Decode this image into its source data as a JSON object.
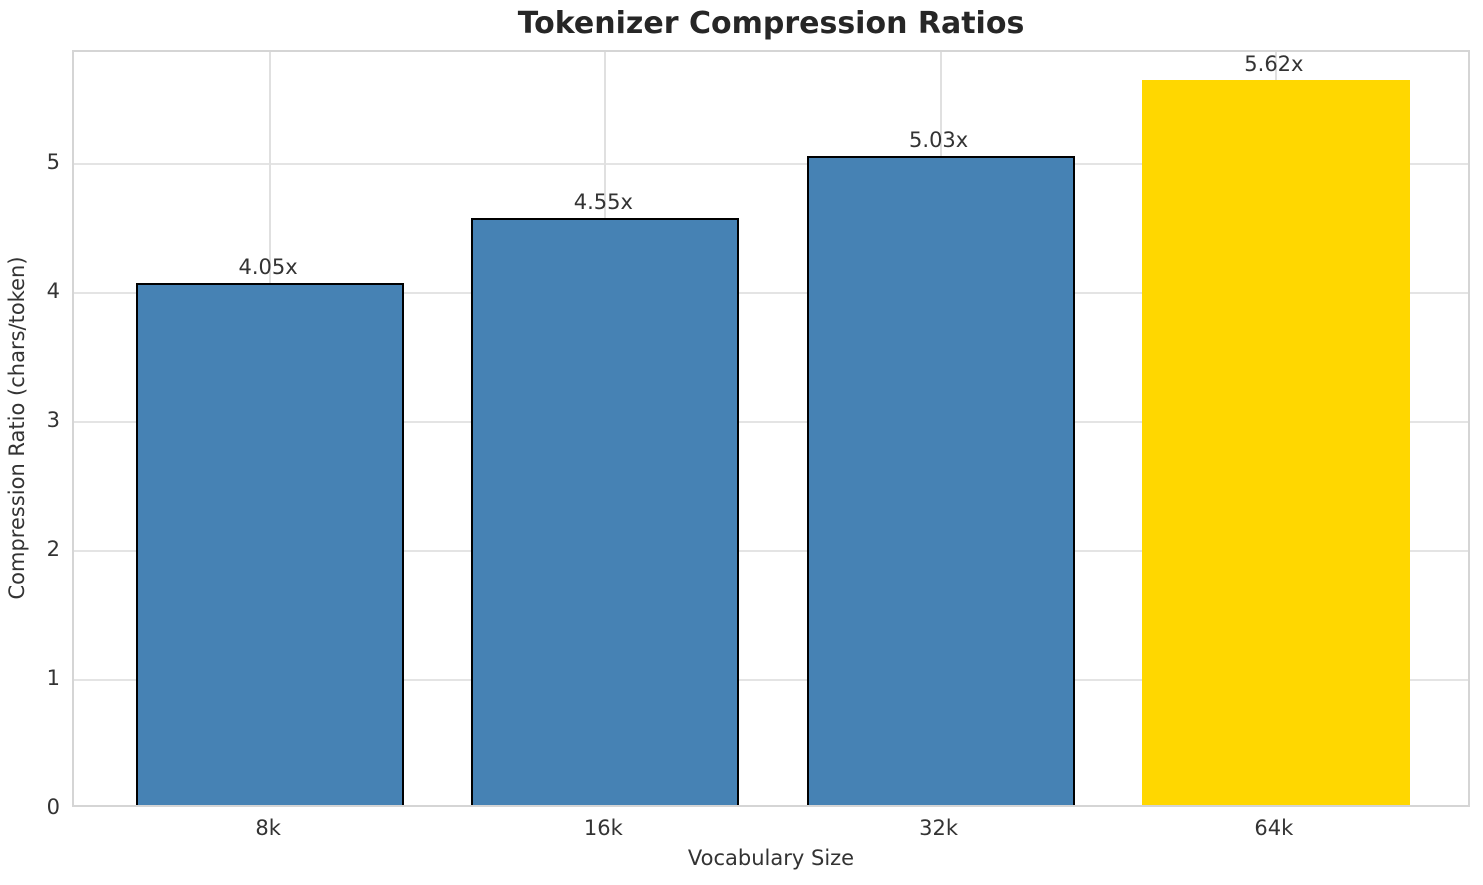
{
  "chart_data": {
    "type": "bar",
    "title": "Tokenizer Compression Ratios",
    "xlabel": "Vocabulary Size",
    "ylabel": "Compression Ratio (chars/token)",
    "categories": [
      "8k",
      "16k",
      "32k",
      "64k"
    ],
    "values": [
      4.05,
      4.55,
      5.03,
      5.62
    ],
    "bar_labels": [
      "4.05x",
      "4.55x",
      "5.03x",
      "5.62x"
    ],
    "bar_colors": [
      "#4682B4",
      "#4682B4",
      "#4682B4",
      "#FFD700"
    ],
    "bar_edge_colors": [
      "#000000",
      "#000000",
      "#000000",
      "transparent"
    ],
    "yticks": [
      0,
      1,
      2,
      3,
      4,
      5
    ],
    "ylim": [
      0,
      5.87
    ],
    "grid": true,
    "legend_position": "none",
    "highlighted_category": "64k"
  },
  "colors": {
    "bar_default": "#4682B4",
    "bar_highlight": "#FFD700",
    "grid": "#e4e4e4",
    "spine": "#d5d5d5",
    "text": "#333333",
    "title_text": "#262626",
    "background": "#ffffff"
  }
}
